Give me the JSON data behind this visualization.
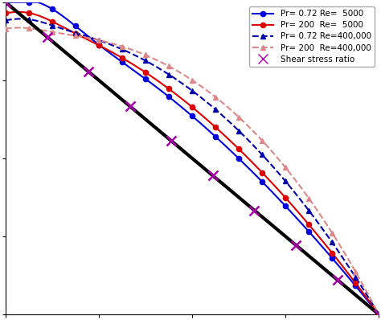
{
  "legend_entries": [
    {
      "label": "Pr= 0.72 Re=  5000",
      "color": "#0000dd",
      "linestyle": "-",
      "marker": "o",
      "markersize": 4.5
    },
    {
      "label": "Pr= 200  Re=  5000",
      "color": "#dd0000",
      "linestyle": "-",
      "marker": "o",
      "markersize": 4.5
    },
    {
      "label": "Pr= 0.72 Re=400,000",
      "color": "#0000aa",
      "linestyle": "--",
      "marker": "^",
      "markersize": 5
    },
    {
      "label": "Pr= 200  Re=400,000",
      "color": "#dd8888",
      "linestyle": "--",
      "marker": "^",
      "markersize": 5
    },
    {
      "label": "Shear stress ratio",
      "color": "#aa00aa",
      "linestyle": "none",
      "marker": "x",
      "markersize": 8
    }
  ],
  "xlim": [
    0,
    1
  ],
  "ylim": [
    0,
    1
  ],
  "background": "#ffffff",
  "shear_stress_color": "#000000",
  "shear_stress_linewidth": 3,
  "n_markers": 17,
  "n_shear_markers": 10
}
